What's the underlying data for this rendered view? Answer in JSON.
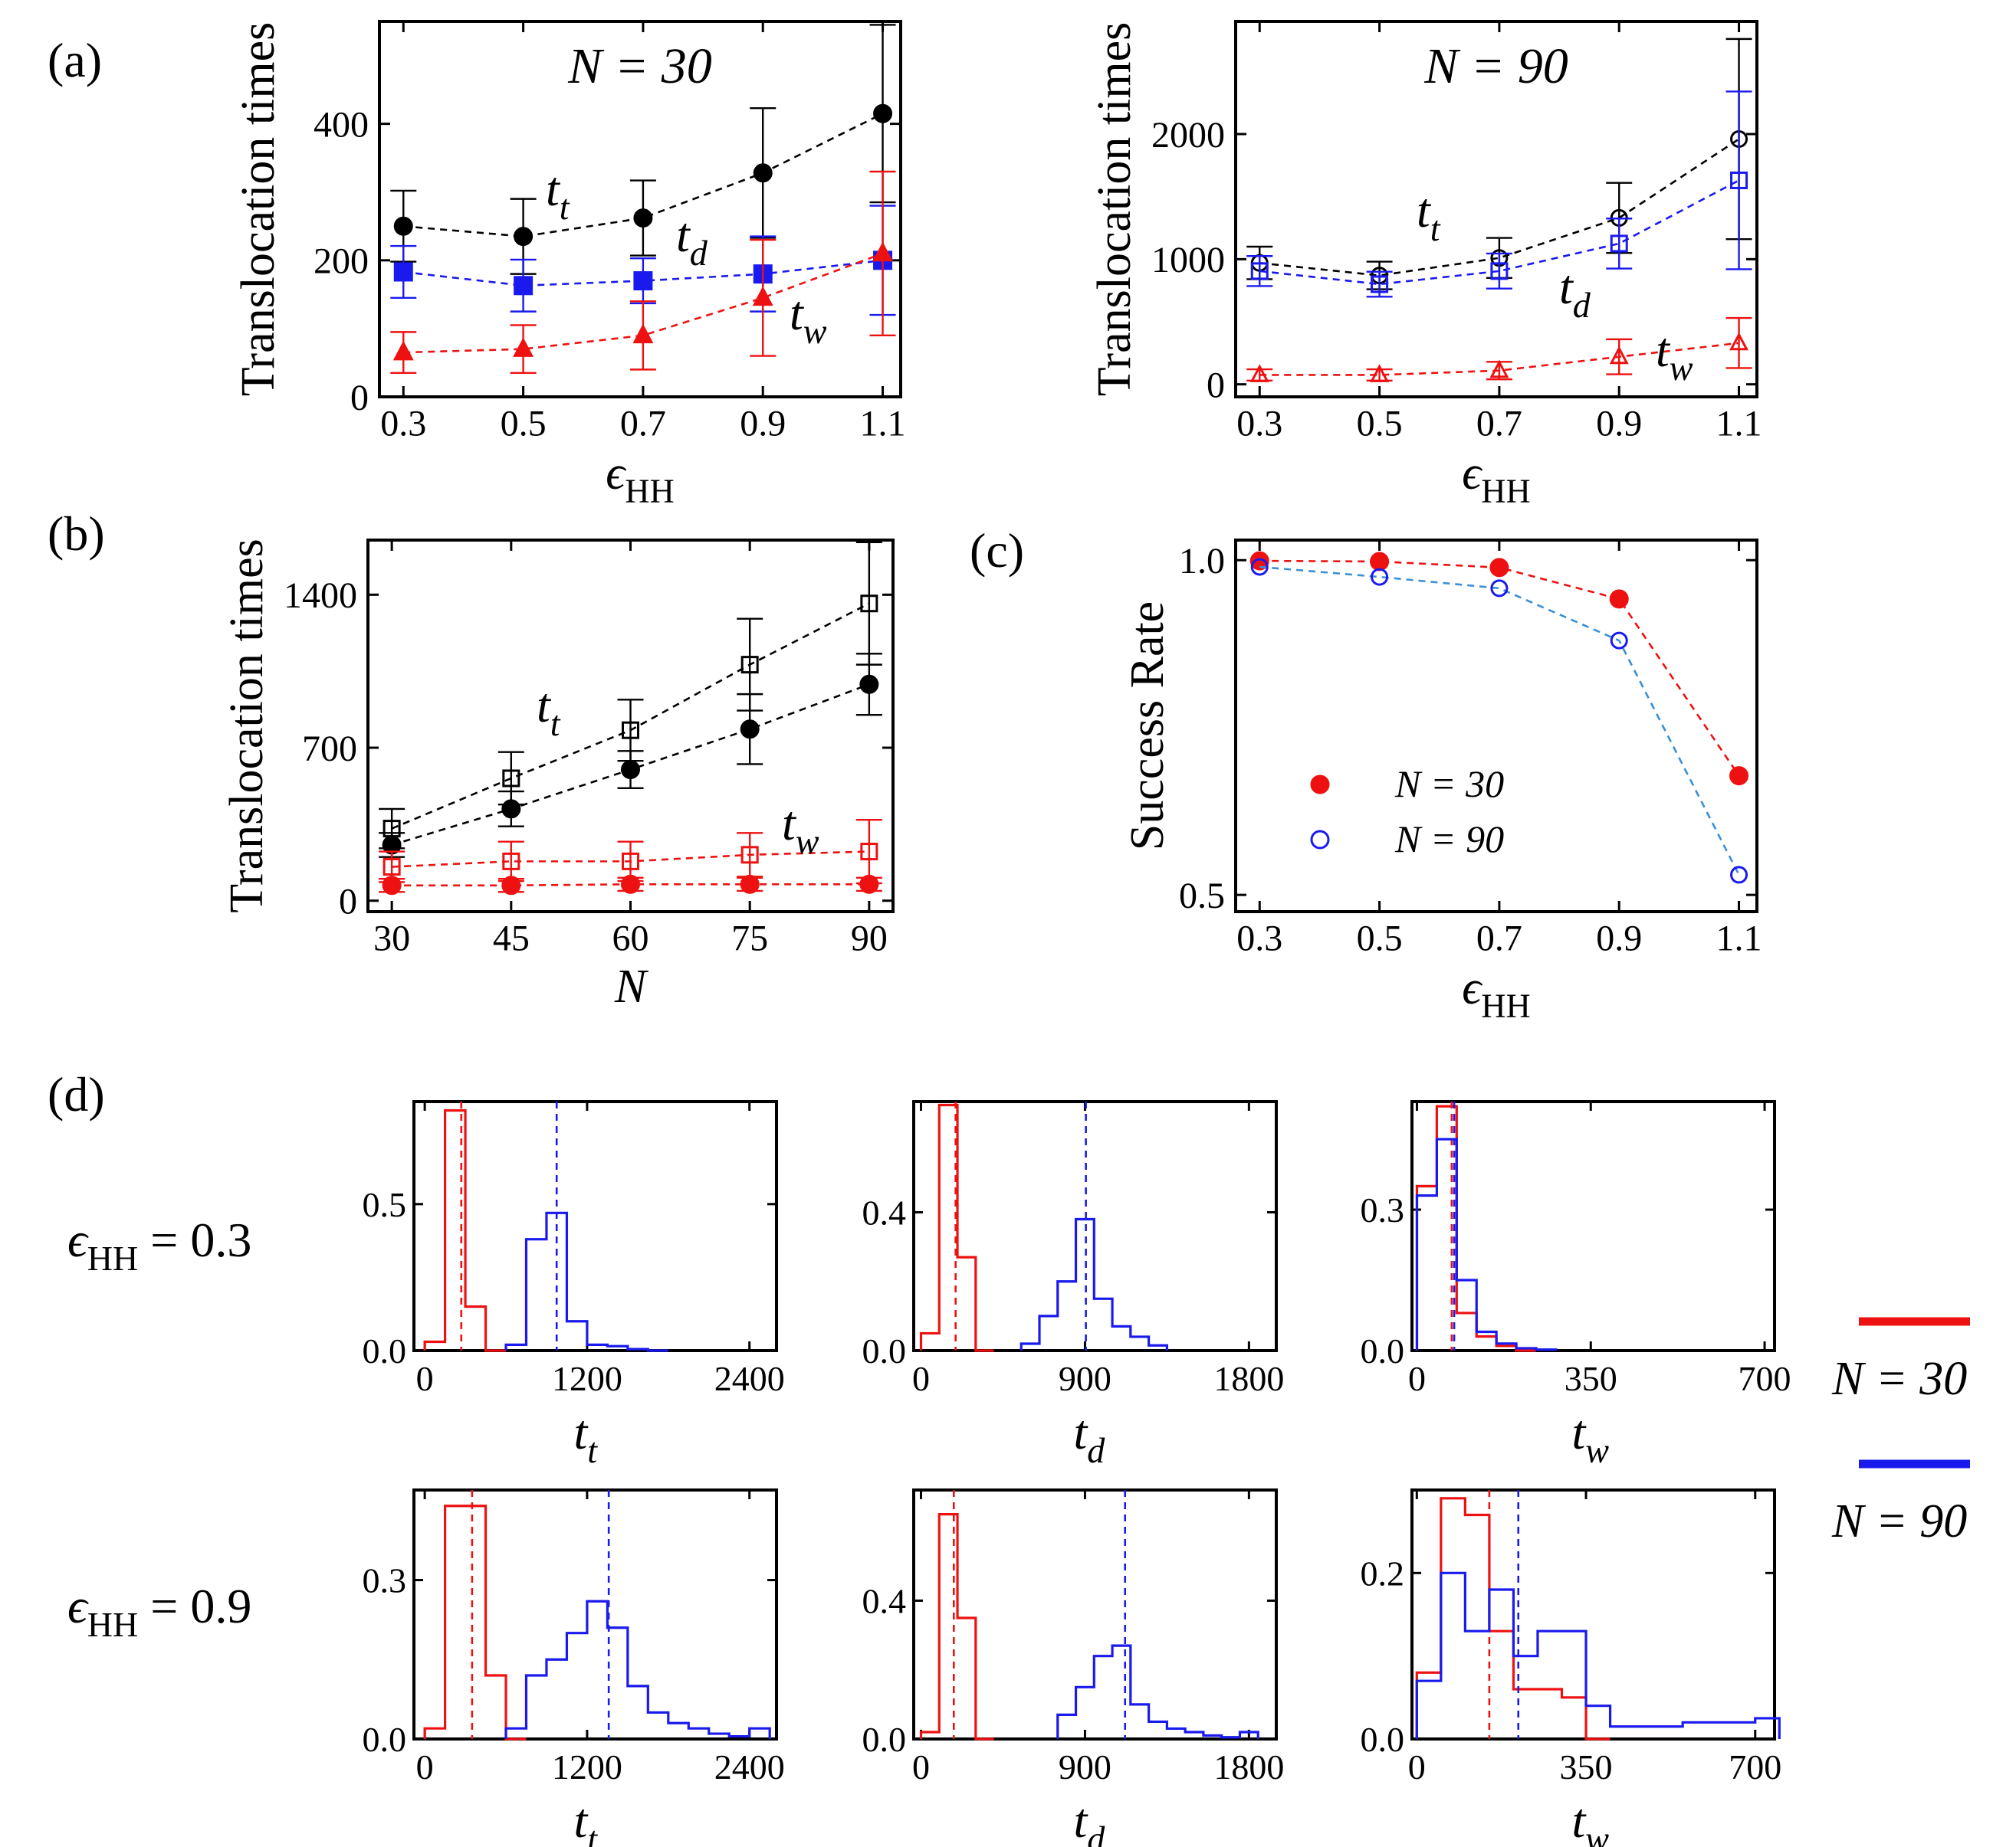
{
  "colors": {
    "black": "#000000",
    "red": "#ee1111",
    "blue": "#1a1aee",
    "lightblue": "#3a8fd6"
  },
  "panel_labels": {
    "a": "(a)",
    "b": "(b)",
    "c": "(c)",
    "d": "(d)"
  },
  "chart_data": [
    {
      "id": "a1",
      "type": "line",
      "panel": "(a)",
      "title": "N = 30",
      "xlabel": "ϵHH",
      "ylabel": "Translocation times",
      "xlim": [
        0.26,
        1.13
      ],
      "ylim": [
        0,
        550
      ],
      "xticks": [
        0.3,
        0.5,
        0.7,
        0.9,
        1.1
      ],
      "yticks": [
        0,
        200,
        400
      ],
      "x": [
        0.3,
        0.5,
        0.7,
        0.9,
        1.1
      ],
      "series": [
        {
          "name": "t_t",
          "label": "t",
          "sub": "t",
          "color": "black",
          "marker": "circle",
          "filled": true,
          "values": [
            250,
            235,
            262,
            328,
            415
          ],
          "errors": [
            52,
            55,
            55,
            95,
            130
          ]
        },
        {
          "name": "t_d",
          "label": "t",
          "sub": "d",
          "color": "blue",
          "marker": "square",
          "filled": true,
          "values": [
            183,
            163,
            170,
            180,
            200
          ],
          "errors": [
            38,
            38,
            33,
            55,
            80
          ]
        },
        {
          "name": "t_w",
          "label": "t",
          "sub": "w",
          "color": "red",
          "marker": "triangle",
          "filled": true,
          "values": [
            65,
            70,
            90,
            145,
            210
          ],
          "errors": [
            30,
            35,
            50,
            85,
            120
          ]
        }
      ]
    },
    {
      "id": "a2",
      "type": "line",
      "panel": "(a)",
      "title": "N = 90",
      "xlabel": "ϵHH",
      "ylabel": "Translocation times",
      "xlim": [
        0.26,
        1.13
      ],
      "ylim": [
        -100,
        2900
      ],
      "xticks": [
        0.3,
        0.5,
        0.7,
        0.9,
        1.1
      ],
      "yticks": [
        0,
        1000,
        2000
      ],
      "x": [
        0.3,
        0.5,
        0.7,
        0.9,
        1.1
      ],
      "series": [
        {
          "name": "t_t",
          "label": "t",
          "sub": "t",
          "color": "black",
          "marker": "circle",
          "filled": false,
          "values": [
            970,
            870,
            1010,
            1330,
            1960
          ],
          "errors": [
            130,
            110,
            160,
            280,
            800
          ]
        },
        {
          "name": "t_d",
          "label": "t",
          "sub": "d",
          "color": "blue",
          "marker": "square",
          "filled": false,
          "values": [
            905,
            800,
            905,
            1125,
            1630
          ],
          "errors": [
            120,
            100,
            140,
            200,
            710
          ]
        },
        {
          "name": "t_w",
          "label": "t",
          "sub": "w",
          "color": "red",
          "marker": "triangle",
          "filled": false,
          "values": [
            75,
            75,
            110,
            220,
            330
          ],
          "errors": [
            45,
            45,
            70,
            140,
            200
          ]
        }
      ]
    },
    {
      "id": "b",
      "type": "line",
      "panel": "(b)",
      "xlabel": "N",
      "ylabel": "Translocation times",
      "xlim": [
        27,
        93
      ],
      "ylim": [
        -50,
        1650
      ],
      "xticks": [
        30,
        45,
        60,
        75,
        90
      ],
      "yticks": [
        0,
        700,
        1400
      ],
      "x": [
        30,
        45,
        60,
        75,
        90
      ],
      "series": [
        {
          "name": "t_t (ϵHH = 0.9)",
          "label": "t",
          "sub": "t",
          "color": "black",
          "marker": "square",
          "filled": false,
          "values": [
            330,
            560,
            780,
            1080,
            1360
          ],
          "errors": [
            90,
            120,
            140,
            210,
            280
          ]
        },
        {
          "name": "t_t (ϵHH = 0.3)",
          "label": "t",
          "sub": "t",
          "color": "black",
          "marker": "circle",
          "filled": true,
          "values": [
            255,
            420,
            600,
            785,
            990
          ],
          "errors": [
            55,
            80,
            85,
            160,
            140
          ]
        },
        {
          "name": "t_w (ϵHH = 0.9)",
          "label": "t",
          "sub": "w",
          "color": "red",
          "marker": "square",
          "filled": false,
          "values": [
            155,
            180,
            180,
            210,
            225
          ],
          "errors": [
            70,
            90,
            90,
            100,
            145
          ]
        },
        {
          "name": "t_w (ϵHH = 0.3)",
          "label": "t",
          "sub": "w",
          "color": "red",
          "marker": "circle",
          "filled": true,
          "values": [
            70,
            70,
            75,
            75,
            75
          ],
          "errors": [
            30,
            30,
            30,
            30,
            30
          ]
        }
      ]
    },
    {
      "id": "c",
      "type": "line",
      "panel": "(c)",
      "xlabel": "ϵHH",
      "ylabel": "Success Rate",
      "xlim": [
        0.26,
        1.13
      ],
      "ylim": [
        0.475,
        1.03
      ],
      "xticks": [
        0.3,
        0.5,
        0.7,
        0.9,
        1.1
      ],
      "yticks": [
        0.5,
        1.0
      ],
      "ytick_labels": [
        "0.5",
        "1.0"
      ],
      "x": [
        0.3,
        0.5,
        0.7,
        0.9,
        1.1
      ],
      "legend": {
        "placement": "lower-left"
      },
      "series": [
        {
          "name": "N = 30",
          "color": "red",
          "marker": "circle",
          "filled": true,
          "values": [
            0.999,
            0.998,
            0.989,
            0.942,
            0.678
          ]
        },
        {
          "name": "N = 90",
          "color": "lightblue",
          "edge": "blue",
          "marker": "circle",
          "filled": false,
          "values": [
            0.99,
            0.975,
            0.958,
            0.88,
            0.53
          ]
        }
      ]
    }
  ],
  "hist_data": [
    {
      "id": "h1",
      "row": "ϵHH = 0.3",
      "var": "t",
      "sub": "t",
      "xlim": [
        -80,
        2600
      ],
      "ylim": [
        0,
        0.85
      ],
      "xticks": [
        0,
        1200,
        2400
      ],
      "yticks": [
        0,
        0.5
      ],
      "ytick_labels": [
        "0.0",
        "0.5"
      ],
      "red": {
        "edges": [
          0,
          150,
          300,
          450,
          600
        ],
        "heights": [
          0.03,
          0.82,
          0.15,
          0
        ],
        "mean": 270
      },
      "blue": {
        "edges": [
          600,
          750,
          900,
          1050,
          1200,
          1350,
          1500,
          1650,
          1800
        ],
        "heights": [
          0.02,
          0.38,
          0.47,
          0.1,
          0.02,
          0.015,
          0.005,
          0
        ],
        "mean": 975
      }
    },
    {
      "id": "h2",
      "row": "ϵHH = 0.3",
      "var": "t",
      "sub": "d",
      "xlim": [
        -40,
        1950
      ],
      "ylim": [
        0,
        0.72
      ],
      "xticks": [
        0,
        900,
        1800
      ],
      "yticks": [
        0,
        0.4
      ],
      "ytick_labels": [
        "0.0",
        "0.4"
      ],
      "red": {
        "edges": [
          0,
          100,
          200,
          300,
          400
        ],
        "heights": [
          0.05,
          0.71,
          0.27,
          0
        ],
        "mean": 190
      },
      "blue": {
        "edges": [
          550,
          650,
          750,
          850,
          950,
          1050,
          1150,
          1250,
          1350
        ],
        "heights": [
          0.02,
          0.1,
          0.2,
          0.38,
          0.15,
          0.07,
          0.04,
          0.015
        ],
        "mean": 905
      }
    },
    {
      "id": "h3",
      "row": "ϵHH = 0.3",
      "var": "t",
      "sub": "w",
      "xlim": [
        -10,
        720
      ],
      "ylim": [
        0,
        0.53
      ],
      "xticks": [
        0,
        350,
        700
      ],
      "yticks": [
        0,
        0.3
      ],
      "ytick_labels": [
        "0.0",
        "0.3"
      ],
      "red": {
        "edges": [
          0,
          40,
          80,
          120,
          160,
          200,
          240
        ],
        "heights": [
          0.35,
          0.52,
          0.08,
          0.03,
          0.01,
          0
        ],
        "mean": 70
      },
      "blue": {
        "edges": [
          0,
          40,
          80,
          120,
          160,
          200,
          240,
          280
        ],
        "heights": [
          0.33,
          0.45,
          0.15,
          0.04,
          0.015,
          0.005,
          0.002
        ],
        "mean": 75
      }
    },
    {
      "id": "h4",
      "row": "ϵHH = 0.9",
      "var": "t",
      "sub": "t",
      "xlim": [
        -80,
        2600
      ],
      "ylim": [
        0,
        0.47
      ],
      "xticks": [
        0,
        1200,
        2400
      ],
      "yticks": [
        0,
        0.3
      ],
      "ytick_labels": [
        "0.0",
        "0.3"
      ],
      "red": {
        "edges": [
          0,
          150,
          300,
          450,
          600,
          750
        ],
        "heights": [
          0.02,
          0.44,
          0.44,
          0.12,
          0
        ],
        "mean": 350
      },
      "blue": {
        "edges": [
          600,
          750,
          900,
          1050,
          1200,
          1350,
          1500,
          1650,
          1800,
          1950,
          2100,
          2250,
          2400,
          2550
        ],
        "heights": [
          0.02,
          0.12,
          0.15,
          0.2,
          0.26,
          0.21,
          0.1,
          0.05,
          0.03,
          0.02,
          0.01,
          0.005,
          0.02
        ],
        "mean": 1360
      }
    },
    {
      "id": "h5",
      "row": "ϵHH = 0.9",
      "var": "t",
      "sub": "d",
      "xlim": [
        -40,
        1950
      ],
      "ylim": [
        0,
        0.72
      ],
      "xticks": [
        0,
        900,
        1800
      ],
      "yticks": [
        0,
        0.4
      ],
      "ytick_labels": [
        "0.0",
        "0.4"
      ],
      "red": {
        "edges": [
          0,
          100,
          200,
          300,
          400
        ],
        "heights": [
          0.02,
          0.65,
          0.35,
          0
        ],
        "mean": 180
      },
      "blue": {
        "edges": [
          750,
          850,
          950,
          1050,
          1150,
          1250,
          1350,
          1450,
          1550,
          1650,
          1750,
          1850
        ],
        "heights": [
          0.07,
          0.15,
          0.24,
          0.27,
          0.1,
          0.05,
          0.03,
          0.02,
          0.01,
          0.005,
          0.02
        ],
        "mean": 1120
      }
    },
    {
      "id": "h6",
      "row": "ϵHH = 0.9",
      "var": "t",
      "sub": "w",
      "xlim": [
        -10,
        740
      ],
      "ylim": [
        0,
        0.3
      ],
      "xticks": [
        0,
        350,
        700
      ],
      "yticks": [
        0,
        0.2
      ],
      "ytick_labels": [
        "0.0",
        "0.2"
      ],
      "red": {
        "edges": [
          0,
          50,
          100,
          150,
          200,
          250,
          300,
          350,
          400
        ],
        "heights": [
          0.08,
          0.29,
          0.27,
          0.13,
          0.06,
          0.06,
          0.05,
          0
        ],
        "mean": 150
      },
      "blue": {
        "edges": [
          0,
          50,
          100,
          150,
          200,
          250,
          300,
          350,
          400,
          450,
          500,
          550,
          600,
          650,
          700,
          750
        ],
        "heights": [
          0.07,
          0.2,
          0.13,
          0.18,
          0.1,
          0.13,
          0.13,
          0.04,
          0.015,
          0.015,
          0.015,
          0.02,
          0.02,
          0.02,
          0.025
        ],
        "mean": 210
      }
    }
  ],
  "row_labels": [
    "ϵHH = 0.3",
    "ϵHH = 0.9"
  ],
  "legend_d": [
    {
      "label": "N = 30",
      "color": "red"
    },
    {
      "label": "N = 90",
      "color": "blue"
    }
  ]
}
